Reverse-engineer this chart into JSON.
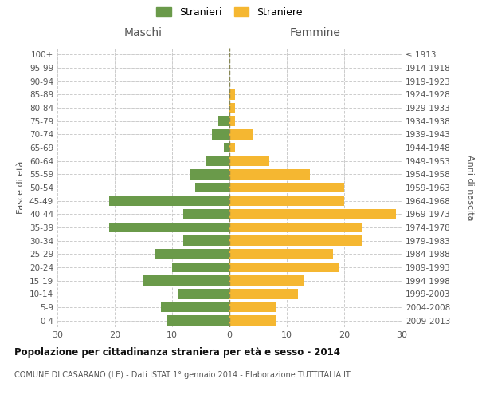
{
  "age_groups": [
    "0-4",
    "5-9",
    "10-14",
    "15-19",
    "20-24",
    "25-29",
    "30-34",
    "35-39",
    "40-44",
    "45-49",
    "50-54",
    "55-59",
    "60-64",
    "65-69",
    "70-74",
    "75-79",
    "80-84",
    "85-89",
    "90-94",
    "95-99",
    "100+"
  ],
  "birth_years": [
    "2009-2013",
    "2004-2008",
    "1999-2003",
    "1994-1998",
    "1989-1993",
    "1984-1988",
    "1979-1983",
    "1974-1978",
    "1969-1973",
    "1964-1968",
    "1959-1963",
    "1954-1958",
    "1949-1953",
    "1944-1948",
    "1939-1943",
    "1934-1938",
    "1929-1933",
    "1924-1928",
    "1919-1923",
    "1914-1918",
    "≤ 1913"
  ],
  "maschi": [
    11,
    12,
    9,
    15,
    10,
    13,
    8,
    21,
    8,
    21,
    6,
    7,
    4,
    1,
    3,
    2,
    0,
    0,
    0,
    0,
    0
  ],
  "femmine": [
    8,
    8,
    12,
    13,
    19,
    18,
    23,
    23,
    29,
    20,
    20,
    14,
    7,
    1,
    4,
    1,
    1,
    1,
    0,
    0,
    0
  ],
  "male_color": "#6a9a4a",
  "female_color": "#f5b731",
  "grid_color": "#cccccc",
  "center_line_color": "#888855",
  "title": "Popolazione per cittadinanza straniera per età e sesso - 2014",
  "subtitle": "COMUNE DI CASARANO (LE) - Dati ISTAT 1° gennaio 2014 - Elaborazione TUTTITALIA.IT",
  "legend_stranieri": "Stranieri",
  "legend_straniere": "Straniere",
  "xlabel_left": "Maschi",
  "xlabel_right": "Femmine",
  "ylabel_left": "Fasce di età",
  "ylabel_right": "Anni di nascita",
  "xlim": 30,
  "background_color": "#ffffff",
  "bar_height": 0.75
}
